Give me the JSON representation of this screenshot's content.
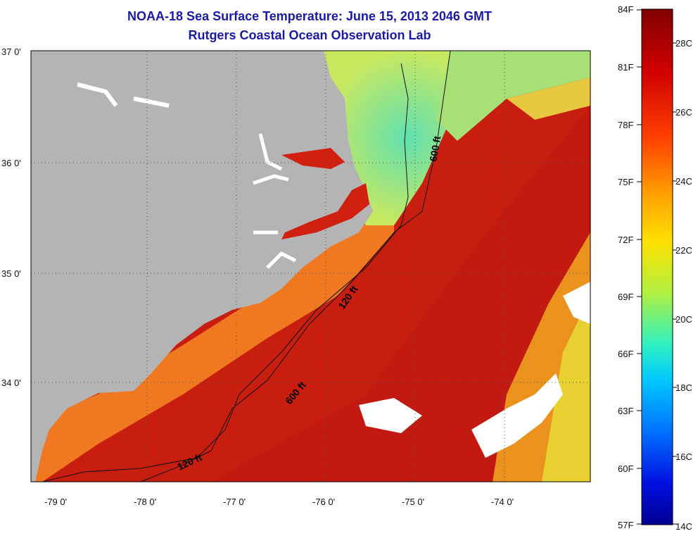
{
  "title": {
    "line1": "NOAA-18 Sea Surface Temperature:  June 15, 2013 2046 GMT",
    "line2": "Rutgers Coastal Ocean Observation Lab"
  },
  "map": {
    "lat_labels": [
      "37 0'",
      "36 0'",
      "35 0'",
      "34 0'"
    ],
    "lon_labels": [
      "-79 0'",
      "-78 0'",
      "-77 0'",
      "-76 0'",
      "-75 0'",
      "-74 0'"
    ],
    "contour_labels": [
      "600 ft",
      "120 ft",
      "600 ft",
      "120 ft"
    ],
    "colors": {
      "land": "#b4b4b4",
      "cloud": "#ffffff",
      "warm_sea": "#d22010",
      "coastal_sea": "#f08a18",
      "cool_sea": "#7ee0a0"
    }
  },
  "colorbar": {
    "f_labels": [
      "84F",
      "81F",
      "78F",
      "75F",
      "72F",
      "69F",
      "66F",
      "63F",
      "60F",
      "57F"
    ],
    "c_labels": [
      "28C",
      "26C",
      "24C",
      "22C",
      "20C",
      "18C",
      "16C",
      "14C"
    ]
  }
}
